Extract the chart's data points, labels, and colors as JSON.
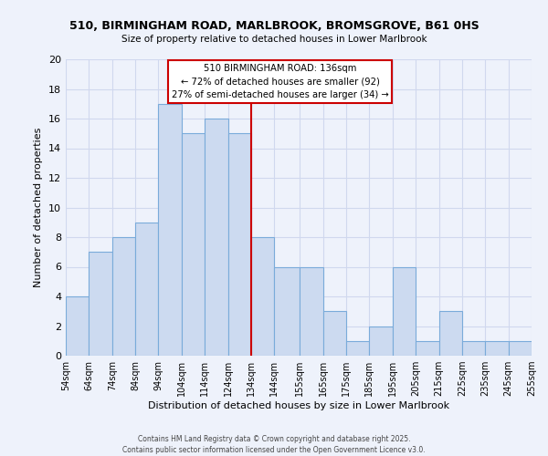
{
  "title_line1": "510, BIRMINGHAM ROAD, MARLBROOK, BROMSGROVE, B61 0HS",
  "title_line2": "Size of property relative to detached houses in Lower Marlbrook",
  "xlabel": "Distribution of detached houses by size in Lower Marlbrook",
  "ylabel": "Number of detached properties",
  "bar_color": "#ccdaf0",
  "bar_edge_color": "#7aabda",
  "background_color": "#eef2fb",
  "grid_color": "#d0d8ee",
  "bins": [
    54,
    64,
    74,
    84,
    94,
    104,
    114,
    124,
    134,
    144,
    155,
    165,
    175,
    185,
    195,
    205,
    215,
    225,
    235,
    245,
    255
  ],
  "counts": [
    4,
    7,
    8,
    9,
    17,
    15,
    16,
    15,
    8,
    6,
    6,
    3,
    1,
    2,
    6,
    1,
    3,
    1,
    1,
    1
  ],
  "tick_labels": [
    "54sqm",
    "64sqm",
    "74sqm",
    "84sqm",
    "94sqm",
    "104sqm",
    "114sqm",
    "124sqm",
    "134sqm",
    "144sqm",
    "155sqm",
    "165sqm",
    "175sqm",
    "185sqm",
    "195sqm",
    "205sqm",
    "215sqm",
    "225sqm",
    "235sqm",
    "245sqm",
    "255sqm"
  ],
  "vline_x": 134,
  "vline_color": "#cc0000",
  "ylim": [
    0,
    20
  ],
  "yticks": [
    0,
    2,
    4,
    6,
    8,
    10,
    12,
    14,
    16,
    18,
    20
  ],
  "annotation_title": "510 BIRMINGHAM ROAD: 136sqm",
  "annotation_line1": "← 72% of detached houses are smaller (92)",
  "annotation_line2": "27% of semi-detached houses are larger (34) →",
  "footnote1": "Contains HM Land Registry data © Crown copyright and database right 2025.",
  "footnote2": "Contains public sector information licensed under the Open Government Licence v3.0."
}
